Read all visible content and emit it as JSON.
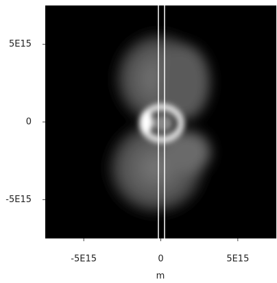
{
  "chart_data": {
    "type": "image",
    "xlabel": "m",
    "xlim": [
      -7500000000000000.0,
      7500000000000000.0
    ],
    "ylim": [
      -7500000000000000.0,
      7500000000000000.0
    ],
    "xticks": [
      {
        "value": -5000000000000000.0,
        "label": "-5E15"
      },
      0,
      {
        "value": 5000000000000000.0,
        "label": "5E15"
      }
    ],
    "yticks": [
      {
        "value": -5000000000000000.0,
        "label": "-5E15"
      },
      0,
      {
        "value": 5000000000000000.0,
        "label": "5E15"
      }
    ]
  }
}
